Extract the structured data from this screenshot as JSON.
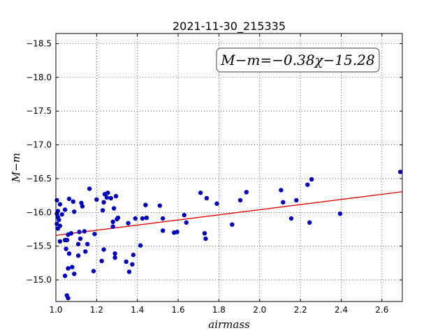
{
  "chart_data": {
    "type": "scatter",
    "title": "2021-11-30_215335",
    "xlabel": "airmass",
    "ylabel": "M−m",
    "xlim": [
      1.0,
      2.7
    ],
    "ylim": [
      -18.65,
      -14.68
    ],
    "y_inverted": true,
    "grid": true,
    "x_ticks": [
      1.0,
      1.2,
      1.4,
      1.6,
      1.8,
      2.0,
      2.2,
      2.4,
      2.6
    ],
    "x_tick_labels": [
      "1.0",
      "1.2",
      "1.4",
      "1.6",
      "1.8",
      "2.0",
      "2.2",
      "2.4",
      "2.6"
    ],
    "y_ticks": [
      -15.0,
      -15.5,
      -16.0,
      -16.5,
      -17.0,
      -17.5,
      -18.0,
      -18.5
    ],
    "y_tick_labels": [
      "−15.0",
      "−15.5",
      "−16.0",
      "−16.5",
      "−17.0",
      "−17.5",
      "−18.0",
      "−18.5"
    ],
    "annotation": "M−m=−0.38χ−15.28",
    "fit": {
      "slope": -0.38,
      "intercept": -15.28,
      "color": "#e00000"
    },
    "point_color": "#0000c0",
    "points": [
      [
        1.06,
        -14.73
      ],
      [
        1.054,
        -14.77
      ],
      [
        1.045,
        -15.06
      ],
      [
        1.09,
        -15.09
      ],
      [
        1.06,
        -15.17
      ],
      [
        1.08,
        -15.19
      ],
      [
        1.185,
        -15.13
      ],
      [
        1.36,
        -15.12
      ],
      [
        1.375,
        -15.23
      ],
      [
        1.345,
        -15.27
      ],
      [
        1.225,
        -15.28
      ],
      [
        1.065,
        -15.39
      ],
      [
        1.11,
        -15.36
      ],
      [
        1.145,
        -15.42
      ],
      [
        1.29,
        -15.33
      ],
      [
        1.38,
        -15.37
      ],
      [
        1.29,
        -15.39
      ],
      [
        1.235,
        -15.45
      ],
      [
        1.05,
        -15.46
      ],
      [
        1.11,
        -15.53
      ],
      [
        1.155,
        -15.53
      ],
      [
        1.415,
        -15.51
      ],
      [
        1.02,
        -15.57
      ],
      [
        1.045,
        -15.59
      ],
      [
        1.055,
        -15.59
      ],
      [
        1.12,
        -15.61
      ],
      [
        1.06,
        -15.67
      ],
      [
        1.075,
        -15.69
      ],
      [
        1.115,
        -15.71
      ],
      [
        1.14,
        -15.72
      ],
      [
        1.19,
        -15.68
      ],
      [
        1.01,
        -15.76
      ],
      [
        1.02,
        -15.8
      ],
      [
        1.005,
        -15.83
      ],
      [
        1.015,
        -15.89
      ],
      [
        1.01,
        -15.93
      ],
      [
        1.005,
        -15.98
      ],
      [
        1.03,
        -15.97
      ],
      [
        1.01,
        -16.02
      ],
      [
        1.045,
        -16.04
      ],
      [
        1.09,
        -16.01
      ],
      [
        1.02,
        -16.12
      ],
      [
        1.005,
        -16.18
      ],
      [
        1.085,
        -16.16
      ],
      [
        1.065,
        -16.2
      ],
      [
        1.13,
        -16.09
      ],
      [
        1.125,
        -16.14
      ],
      [
        1.165,
        -16.35
      ],
      [
        1.2,
        -16.19
      ],
      [
        1.23,
        -16.03
      ],
      [
        1.235,
        -16.15
      ],
      [
        1.25,
        -16.22
      ],
      [
        1.24,
        -16.27
      ],
      [
        1.255,
        -16.29
      ],
      [
        1.27,
        -16.21
      ],
      [
        1.285,
        -16.06
      ],
      [
        1.295,
        -16.24
      ],
      [
        1.28,
        -15.79
      ],
      [
        1.28,
        -15.86
      ],
      [
        1.3,
        -15.9
      ],
      [
        1.305,
        -15.92
      ],
      [
        1.355,
        -15.84
      ],
      [
        1.39,
        -15.91
      ],
      [
        1.425,
        -15.91
      ],
      [
        1.445,
        -15.92
      ],
      [
        1.44,
        -16.11
      ],
      [
        1.51,
        -16.1
      ],
      [
        1.525,
        -15.73
      ],
      [
        1.525,
        -15.91
      ],
      [
        1.58,
        -15.7
      ],
      [
        1.595,
        -15.71
      ],
      [
        1.64,
        -15.85
      ],
      [
        1.63,
        -15.96
      ],
      [
        1.735,
        -15.61
      ],
      [
        1.73,
        -15.69
      ],
      [
        1.74,
        -16.21
      ],
      [
        1.71,
        -16.29
      ],
      [
        1.79,
        -16.13
      ],
      [
        1.865,
        -15.82
      ],
      [
        1.905,
        -16.18
      ],
      [
        1.935,
        -16.3
      ],
      [
        2.105,
        -16.33
      ],
      [
        2.115,
        -16.15
      ],
      [
        2.155,
        -15.91
      ],
      [
        2.18,
        -16.18
      ],
      [
        2.235,
        -16.41
      ],
      [
        2.245,
        -15.85
      ],
      [
        2.255,
        -16.49
      ],
      [
        2.395,
        -15.98
      ],
      [
        2.69,
        -16.6
      ]
    ]
  }
}
